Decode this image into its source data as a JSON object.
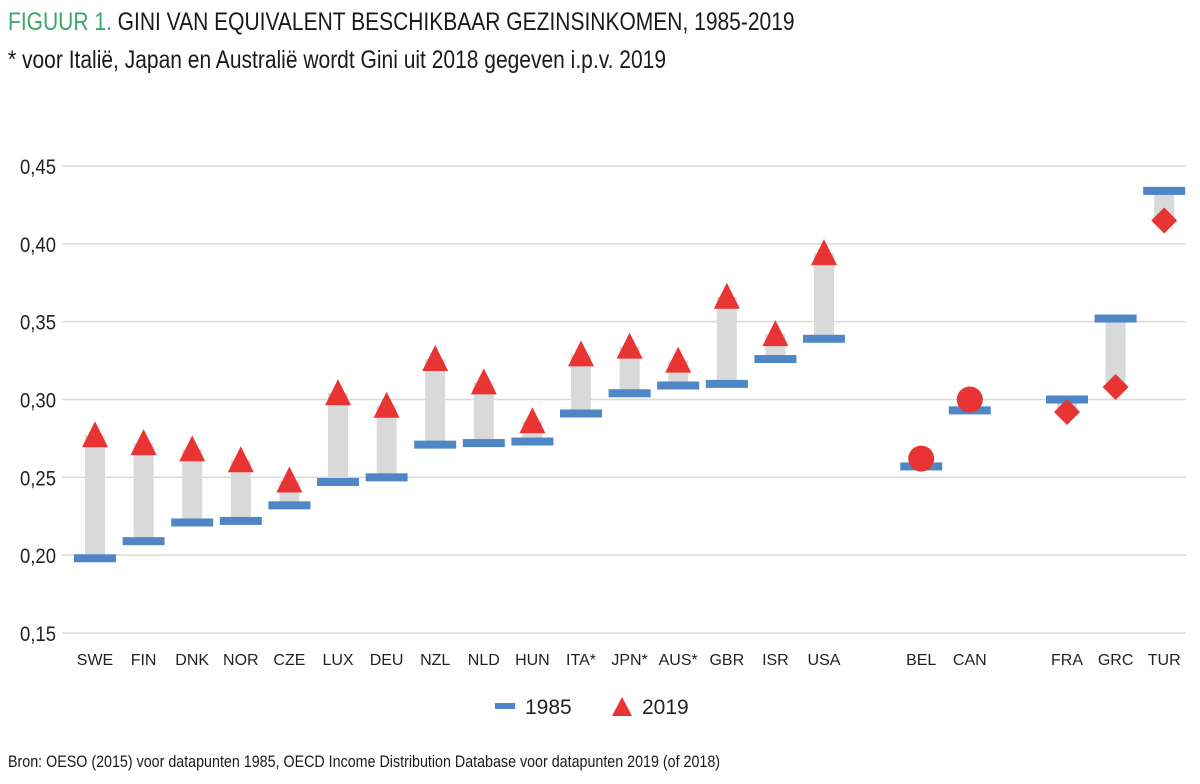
{
  "title": {
    "label": "FIGUUR 1.",
    "text": " GINI VAN EQUIVALENT BESCHIKBAAR GEZINSINKOMEN, 1985-2019"
  },
  "subtitle": "* voor Italië, Japan en Australië wordt Gini uit 2018 gegeven i.p.v. 2019",
  "source": "Bron: OESO (2015) voor datapunten 1985, OECD Income Distribution Database voor datapunten 2019 (of 2018)",
  "colors": {
    "title_label": "#3aa86b",
    "series_1985": "#4f86c6",
    "series_2019": "#e83432",
    "range_bar": "#d9d9d9",
    "grid": "#d9d9d9"
  },
  "chart_data": {
    "type": "scatter",
    "title": "GINI VAN EQUIVALENT BESCHIKBAAR GEZINSINKOMEN, 1985-2019",
    "ylim": [
      0.15,
      0.45
    ],
    "yticks": [
      "0,15",
      "0,20",
      "0,25",
      "0,30",
      "0,35",
      "0,40",
      "0,45"
    ],
    "ytick_values": [
      0.15,
      0.2,
      0.25,
      0.3,
      0.35,
      0.4,
      0.45
    ],
    "grid": true,
    "legend_position": "bottom",
    "legend": [
      {
        "name": "1985",
        "marker": "dash"
      },
      {
        "name": "2019",
        "marker": "triangle"
      }
    ],
    "categories": [
      "SWE",
      "FIN",
      "DNK",
      "NOR",
      "CZE",
      "LUX",
      "DEU",
      "NZL",
      "NLD",
      "HUN",
      "ITA*",
      "JPN*",
      "AUS*",
      "GBR",
      "ISR",
      "USA",
      null,
      "BEL",
      "CAN",
      null,
      "FRA",
      "GRC",
      "TUR"
    ],
    "series": [
      {
        "name": "1985",
        "marker": "dash",
        "values": [
          0.198,
          0.209,
          0.221,
          0.222,
          0.232,
          0.247,
          0.25,
          0.271,
          0.272,
          0.273,
          0.291,
          0.304,
          0.309,
          0.31,
          0.326,
          0.339,
          null,
          0.257,
          0.293,
          null,
          0.3,
          0.352,
          0.434
        ]
      },
      {
        "name": "2019",
        "markers": [
          "triangle",
          "triangle",
          "triangle",
          "triangle",
          "triangle",
          "triangle",
          "triangle",
          "triangle",
          "triangle",
          "triangle",
          "triangle",
          "triangle",
          "triangle",
          "triangle",
          "triangle",
          "triangle",
          null,
          "circle",
          "circle",
          null,
          "diamond",
          "diamond",
          "diamond"
        ],
        "values": [
          0.277,
          0.272,
          0.268,
          0.261,
          0.248,
          0.304,
          0.296,
          0.326,
          0.311,
          0.286,
          0.329,
          0.334,
          0.325,
          0.366,
          0.342,
          0.394,
          null,
          0.262,
          0.3,
          null,
          0.292,
          0.308,
          0.415
        ]
      }
    ]
  }
}
